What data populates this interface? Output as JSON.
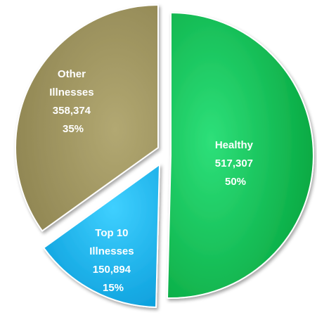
{
  "chart_data": {
    "type": "pie",
    "exploded": true,
    "slices": [
      {
        "name": "Healthy",
        "value": 517307,
        "value_label": "517,307",
        "percent": "50%",
        "color": "#0cc14f"
      },
      {
        "name": "Top 10 Illnesses",
        "value": 150894,
        "value_label": "150,894",
        "percent": "15%",
        "color": "#1ab8f5"
      },
      {
        "name": "Other Illnesses",
        "value": 358374,
        "value_label": "358,374",
        "percent": "35%",
        "color": "#9f9560"
      }
    ],
    "labels": {
      "healthy": [
        "Healthy",
        "517,307",
        "50%"
      ],
      "top10": [
        "Top 10",
        "Illnesses",
        "150,894",
        "15%"
      ],
      "other": [
        "Other",
        "Illnesses",
        "358,374",
        "35%"
      ]
    }
  }
}
